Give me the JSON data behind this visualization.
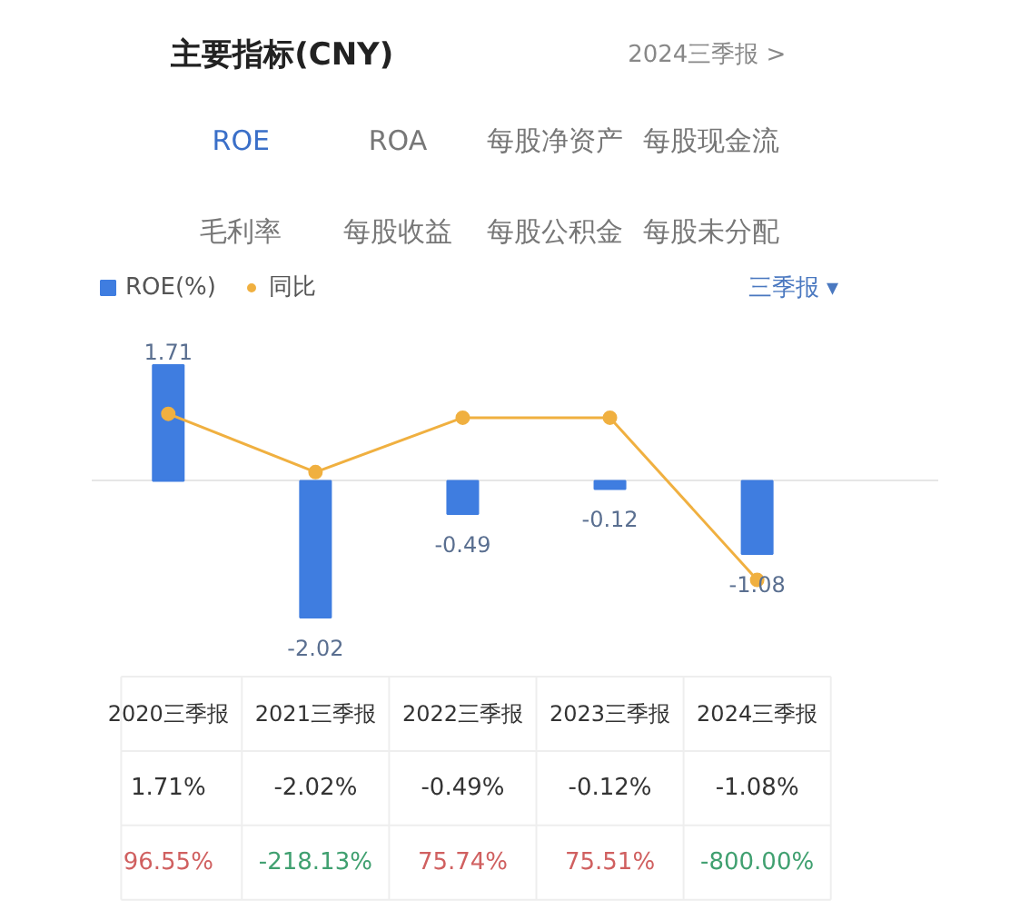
{
  "chart_data": {
    "type": "bar",
    "title": "主要指标(CNY)",
    "annotations": [
      "2024三季报 >",
      "ROE",
      "ROA",
      "每股净资产",
      "每股现金流",
      "毛利率",
      "每股收益",
      "每股公积金",
      "每股未分配",
      "三季报 ▾",
      "1.71%",
      "-2.02%",
      "-0.49%",
      "-0.12%",
      "-1.08%"
    ],
    "categories": [
      "2020三季报",
      "2021三季报",
      "2022三季报",
      "2023三季报",
      "2024三季报"
    ],
    "series": [
      {
        "name": "ROE(%)",
        "color": "#3f7de0",
        "values": [
          1.71,
          -2.02,
          -0.49,
          -0.12,
          -1.08
        ]
      },
      {
        "name": "同比",
        "type": "line",
        "axis": "y2",
        "color": "#f0b040",
        "marker": "circle",
        "values": [
          96.55,
          -218.13,
          75.74,
          75.51,
          -800.0
        ],
        "value_labels": [
          "96.55%",
          "-218.13%",
          "75.74%",
          "75.51%",
          "-800.00%"
        ]
      }
    ],
    "data_labels": true,
    "tick_labels": false,
    "legend": "top left",
    "ref_lines": [
      {
        "axis": "y",
        "value": 0,
        "color": "#e6e6e6"
      }
    ]
  }
}
